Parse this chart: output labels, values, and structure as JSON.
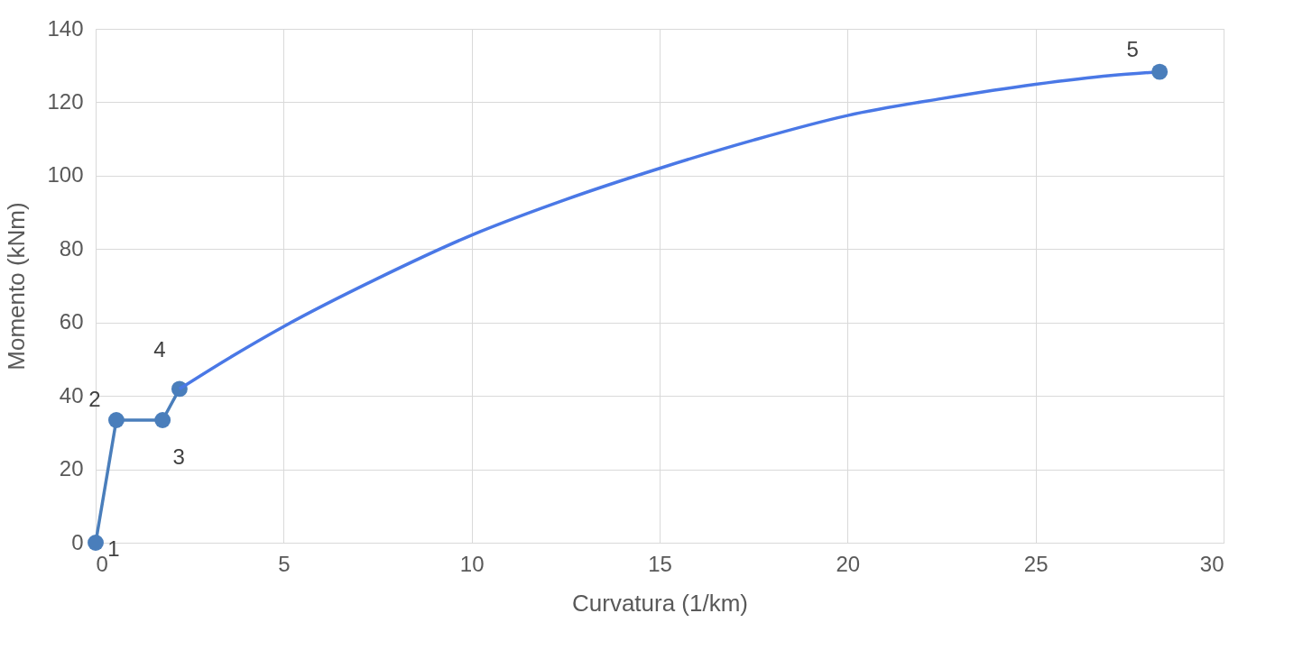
{
  "chart_data": {
    "type": "line",
    "xlabel": "Curvatura (1/km)",
    "ylabel": "Momento (kNm)",
    "xlim": [
      0,
      30
    ],
    "xticks": [
      0,
      5,
      10,
      15,
      20,
      25,
      30
    ],
    "ylim": [
      0,
      140
    ],
    "yticks": [
      0,
      20,
      40,
      60,
      80,
      100,
      120,
      140
    ],
    "grid": true,
    "series": [
      {
        "marker": "circle",
        "color": "#4a7ebb",
        "x": [
          0,
          0.55,
          1.78,
          2.23
        ],
        "values": [
          0,
          33.4,
          33.4,
          41.9
        ]
      },
      {
        "marker": "none",
        "color": "#4a78e6",
        "x": [
          2.23,
          3.5,
          5,
          7.5,
          10,
          12.5,
          15,
          17.5,
          20,
          22.5,
          25,
          27,
          28.3
        ],
        "values": [
          41.9,
          50,
          58.9,
          72,
          83.8,
          93.5,
          102,
          109.7,
          116.4,
          121,
          124.9,
          127.3,
          128.3
        ]
      },
      {
        "type": "scatter",
        "marker": "circle",
        "color": "#4a7ebb",
        "x": [
          28.3
        ],
        "values": [
          128.3
        ]
      }
    ],
    "annotations": [
      {
        "text": "1",
        "x": 0,
        "y": 0
      },
      {
        "text": "2",
        "x": 0.55,
        "y": 33.4
      },
      {
        "text": "3",
        "x": 1.78,
        "y": 33.4
      },
      {
        "text": "4",
        "x": 2.23,
        "y": 41.9
      },
      {
        "text": "5",
        "x": 28.3,
        "y": 128.3
      }
    ]
  }
}
